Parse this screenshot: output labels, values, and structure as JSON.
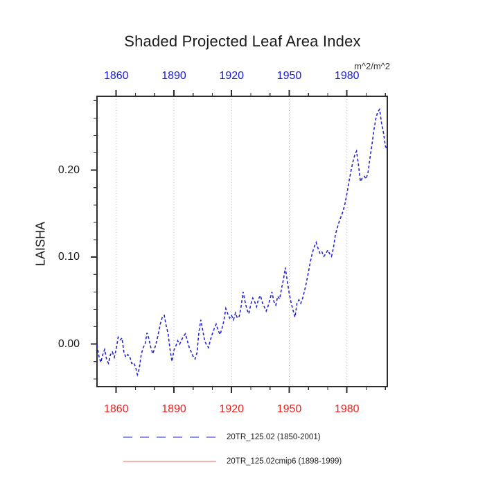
{
  "chart_data": {
    "type": "line",
    "title": "Shaded Projected Leaf Area Index",
    "units": "m^2/m^2",
    "x_axis": {
      "major_ticks": [
        1860,
        1890,
        1920,
        1950,
        1980
      ],
      "major_tick_labels": [
        "1860",
        "1890",
        "1920",
        "1950",
        "1980"
      ],
      "minor_tick_step": 10,
      "xlim": [
        1850,
        2001
      ],
      "top_label_color": "#1818e6",
      "bottom_label_color": "#ee2020"
    },
    "y_axis": {
      "label": "LAISHA",
      "major_ticks": [
        0.0,
        0.1,
        0.2
      ],
      "major_tick_labels": [
        "0.00",
        "0.10",
        "0.20"
      ],
      "minor_tick_step": 0.02,
      "ylim": [
        -0.0488,
        0.285
      ],
      "label_color": "#1a1a1a"
    },
    "grid": {
      "vertical_at_years": [
        1860,
        1890,
        1920,
        1950,
        1980
      ],
      "horizontal": false,
      "style": "dotted",
      "color": "#b4b4b4"
    },
    "box_color": "#2d2d2d",
    "series": [
      {
        "name": "20TR_125.02 (1850-2001)",
        "color": "#2424cd",
        "line_style": "dashed",
        "x_start": 1850,
        "x_step": 1,
        "values": [
          -0.001,
          -0.014,
          -0.021,
          -0.012,
          -0.006,
          -0.018,
          -0.022,
          -0.012,
          -0.009,
          -0.015,
          -0.006,
          0.008,
          0.005,
          0.007,
          -0.009,
          -0.015,
          -0.012,
          -0.014,
          -0.022,
          -0.021,
          -0.026,
          -0.035,
          -0.028,
          -0.012,
          -0.004,
          0.0,
          0.013,
          0.006,
          -0.004,
          -0.011,
          -0.005,
          0.003,
          0.013,
          0.024,
          0.031,
          0.033,
          0.021,
          0.012,
          -0.006,
          -0.02,
          -0.007,
          -0.002,
          0.004,
          0.0,
          0.005,
          0.009,
          0.012,
          0.004,
          -0.004,
          -0.009,
          -0.014,
          -0.017,
          -0.01,
          0.014,
          0.028,
          0.016,
          0.004,
          -0.001,
          -0.004,
          0.005,
          0.012,
          0.018,
          0.023,
          0.016,
          0.011,
          0.018,
          0.027,
          0.041,
          0.035,
          0.03,
          0.033,
          0.028,
          0.036,
          0.03,
          0.032,
          0.044,
          0.06,
          0.049,
          0.04,
          0.035,
          0.046,
          0.053,
          0.049,
          0.043,
          0.052,
          0.056,
          0.048,
          0.043,
          0.038,
          0.044,
          0.052,
          0.06,
          0.049,
          0.045,
          0.055,
          0.052,
          0.064,
          0.075,
          0.088,
          0.072,
          0.058,
          0.047,
          0.039,
          0.031,
          0.047,
          0.051,
          0.047,
          0.053,
          0.062,
          0.072,
          0.083,
          0.095,
          0.105,
          0.112,
          0.117,
          0.11,
          0.104,
          0.106,
          0.101,
          0.104,
          0.108,
          0.104,
          0.101,
          0.111,
          0.126,
          0.134,
          0.141,
          0.147,
          0.153,
          0.162,
          0.173,
          0.186,
          0.198,
          0.209,
          0.217,
          0.222,
          0.206,
          0.187,
          0.191,
          0.193,
          0.19,
          0.198,
          0.214,
          0.229,
          0.246,
          0.259,
          0.267,
          0.27,
          0.254,
          0.243,
          0.228,
          0.223
        ]
      }
    ],
    "legend": [
      {
        "label": "20TR_125.02 (1850-2001)",
        "line_color": "#6b6be0",
        "line_style": "dashed"
      },
      {
        "label": "20TR_125.02cmip6 (1898-1999)",
        "line_color": "#f08080",
        "line_style": "solid"
      }
    ]
  }
}
